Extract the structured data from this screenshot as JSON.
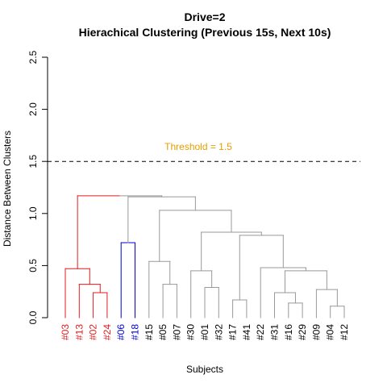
{
  "chart_data": {
    "type": "dendrogram",
    "title": "Drive=2",
    "subtitle": "Hierachical Clustering (Previous 15s, Next 10s)",
    "xlabel": "Subjects",
    "ylabel": "Distance Between Clusters",
    "ylim": [
      0,
      2.5
    ],
    "yticks": [
      {
        "value": 0.0,
        "label": "0.0"
      },
      {
        "value": 0.5,
        "label": "0.5"
      },
      {
        "value": 1.0,
        "label": "1.0"
      },
      {
        "value": 1.5,
        "label": "1.5"
      },
      {
        "value": 2.0,
        "label": "2.0"
      },
      {
        "value": 2.5,
        "label": "2.5"
      }
    ],
    "threshold": {
      "value": 1.5,
      "label": "Threshold = 1.5",
      "color": "#e69f00",
      "style": "dashed"
    },
    "cluster_colors": {
      "red": "#e41a1c",
      "blue": "#0000cc",
      "gray": "#999999",
      "leaf_default": "#000000"
    },
    "leaves": [
      {
        "label": "#03",
        "color": "red"
      },
      {
        "label": "#13",
        "color": "red"
      },
      {
        "label": "#02",
        "color": "red"
      },
      {
        "label": "#24",
        "color": "red"
      },
      {
        "label": "#06",
        "color": "blue"
      },
      {
        "label": "#18",
        "color": "blue"
      },
      {
        "label": "#15",
        "color": "leaf_default"
      },
      {
        "label": "#05",
        "color": "leaf_default"
      },
      {
        "label": "#07",
        "color": "leaf_default"
      },
      {
        "label": "#30",
        "color": "leaf_default"
      },
      {
        "label": "#01",
        "color": "leaf_default"
      },
      {
        "label": "#32",
        "color": "leaf_default"
      },
      {
        "label": "#17",
        "color": "leaf_default"
      },
      {
        "label": "#41",
        "color": "leaf_default"
      },
      {
        "label": "#22",
        "color": "leaf_default"
      },
      {
        "label": "#31",
        "color": "leaf_default"
      },
      {
        "label": "#16",
        "color": "leaf_default"
      },
      {
        "label": "#29",
        "color": "leaf_default"
      },
      {
        "label": "#09",
        "color": "leaf_default"
      },
      {
        "label": "#04",
        "color": "leaf_default"
      },
      {
        "label": "#12",
        "color": "leaf_default"
      }
    ],
    "merges": [
      {
        "id": "A",
        "children": [
          "#02",
          "#24"
        ],
        "height": 0.24,
        "color": "red"
      },
      {
        "id": "B",
        "children": [
          "#13",
          "A"
        ],
        "height": 0.32,
        "color": "red"
      },
      {
        "id": "C",
        "children": [
          "#03",
          "B"
        ],
        "height": 0.47,
        "color": "red"
      },
      {
        "id": "D",
        "children": [
          "#06",
          "#18"
        ],
        "height": 0.72,
        "color": "blue"
      },
      {
        "id": "E",
        "children": [
          "#05",
          "#07"
        ],
        "height": 0.32,
        "color": "gray"
      },
      {
        "id": "F",
        "children": [
          "#15",
          "E"
        ],
        "height": 0.54,
        "color": "gray"
      },
      {
        "id": "G",
        "children": [
          "#01",
          "#32"
        ],
        "height": 0.29,
        "color": "gray"
      },
      {
        "id": "H",
        "children": [
          "#30",
          "G"
        ],
        "height": 0.45,
        "color": "gray"
      },
      {
        "id": "I",
        "children": [
          "#17",
          "#41"
        ],
        "height": 0.17,
        "color": "gray"
      },
      {
        "id": "J",
        "children": [
          "#16",
          "#29"
        ],
        "height": 0.14,
        "color": "gray"
      },
      {
        "id": "K",
        "children": [
          "#31",
          "J"
        ],
        "height": 0.24,
        "color": "gray"
      },
      {
        "id": "L",
        "children": [
          "#04",
          "#12"
        ],
        "height": 0.11,
        "color": "gray"
      },
      {
        "id": "M",
        "children": [
          "#09",
          "L"
        ],
        "height": 0.27,
        "color": "gray"
      },
      {
        "id": "N",
        "children": [
          "K",
          "M"
        ],
        "height": 0.45,
        "color": "gray"
      },
      {
        "id": "O",
        "children": [
          "#22",
          "N"
        ],
        "height": 0.48,
        "color": "gray"
      },
      {
        "id": "P",
        "children": [
          "I",
          "O"
        ],
        "height": 0.79,
        "color": "gray"
      },
      {
        "id": "Q",
        "children": [
          "H",
          "P"
        ],
        "height": 0.82,
        "color": "gray"
      },
      {
        "id": "R",
        "children": [
          "F",
          "Q"
        ],
        "height": 1.03,
        "color": "gray"
      },
      {
        "id": "S",
        "children": [
          "D",
          "R"
        ],
        "height": 1.16,
        "color": "gray"
      },
      {
        "id": "T",
        "children": [
          "C",
          "S"
        ],
        "height": 1.17,
        "color": "mixed"
      }
    ]
  }
}
